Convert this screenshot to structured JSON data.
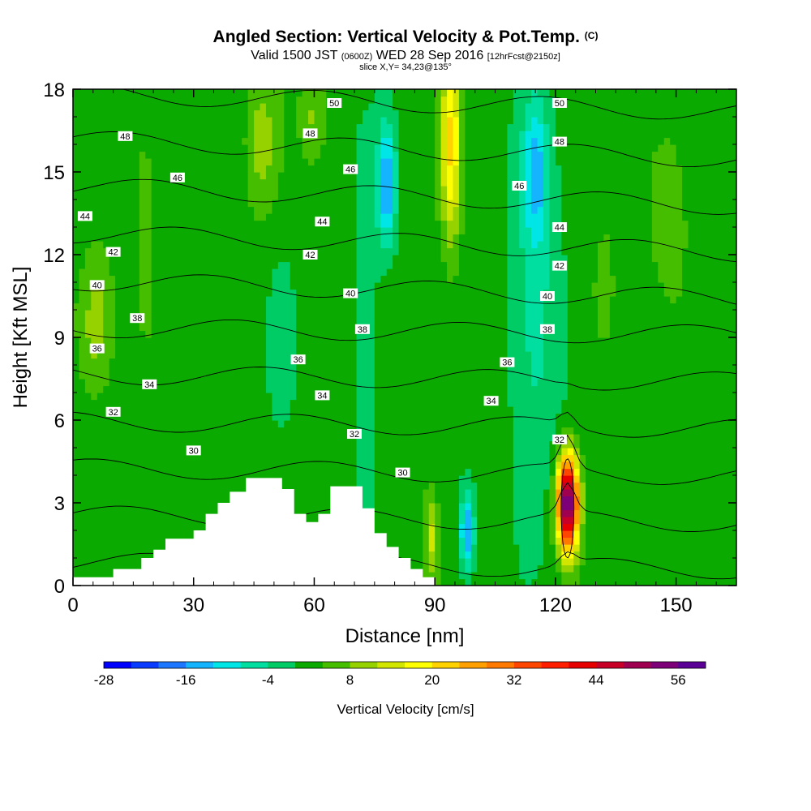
{
  "header": {
    "title_main": "Angled Section: Vertical Velocity & Pot.Temp.",
    "title_unit": "(C)",
    "valid_prefix": "Valid 1500 JST",
    "valid_z": "(0600Z)",
    "valid_date": "WED 28 Sep 2016",
    "valid_fcst": "[12hrFcst@2150z]",
    "slice": "slice X,Y= 34,23@135°"
  },
  "chart_data": {
    "type": "heatmap",
    "xlabel": "Distance [nm]",
    "ylabel": "Height [Kft MSL]",
    "xlim": [
      0,
      165
    ],
    "ylim": [
      0,
      18
    ],
    "x_ticks": [
      0,
      30,
      60,
      90,
      120,
      150
    ],
    "y_ticks": [
      0,
      3,
      6,
      9,
      12,
      15,
      18
    ],
    "colorbar": {
      "label": "Vertical Velocity [cm/s]",
      "min": -28,
      "max": 60,
      "step": 4,
      "tick_labels": [
        "-28",
        "-16",
        "-4",
        "8",
        "20",
        "32",
        "44",
        "56"
      ],
      "colors": [
        "#0000ff",
        "#0a3cff",
        "#1e78ff",
        "#14b4ff",
        "#00e6e6",
        "#00dfa0",
        "#00cc66",
        "#0aaa00",
        "#46be00",
        "#96d200",
        "#d2e600",
        "#ffff00",
        "#ffd200",
        "#ffa000",
        "#ff7800",
        "#ff4600",
        "#ff1e00",
        "#e60000",
        "#c80028",
        "#a00050",
        "#7d0078",
        "#5a0096"
      ]
    },
    "theta_contours": {
      "levels": [
        30,
        32,
        34,
        36,
        38,
        40,
        42,
        44,
        46,
        48,
        50
      ],
      "labels": [
        {
          "v": "50",
          "x": 65,
          "y": 17.5
        },
        {
          "v": "50",
          "x": 121,
          "y": 17.5
        },
        {
          "v": "48",
          "x": 13,
          "y": 16.3
        },
        {
          "v": "48",
          "x": 59,
          "y": 16.4
        },
        {
          "v": "48",
          "x": 121,
          "y": 16.1
        },
        {
          "v": "46",
          "x": 26,
          "y": 14.8
        },
        {
          "v": "46",
          "x": 69,
          "y": 15.1
        },
        {
          "v": "46",
          "x": 111,
          "y": 14.5
        },
        {
          "v": "44",
          "x": 3,
          "y": 13.4
        },
        {
          "v": "44",
          "x": 62,
          "y": 13.2
        },
        {
          "v": "44",
          "x": 121,
          "y": 13.0
        },
        {
          "v": "42",
          "x": 10,
          "y": 12.1
        },
        {
          "v": "42",
          "x": 59,
          "y": 12.0
        },
        {
          "v": "42",
          "x": 121,
          "y": 11.6
        },
        {
          "v": "40",
          "x": 6,
          "y": 10.9
        },
        {
          "v": "40",
          "x": 69,
          "y": 10.6
        },
        {
          "v": "40",
          "x": 118,
          "y": 10.5
        },
        {
          "v": "38",
          "x": 16,
          "y": 9.7
        },
        {
          "v": "38",
          "x": 72,
          "y": 9.3
        },
        {
          "v": "38",
          "x": 118,
          "y": 9.3
        },
        {
          "v": "36",
          "x": 6,
          "y": 8.6
        },
        {
          "v": "36",
          "x": 56,
          "y": 8.2
        },
        {
          "v": "36",
          "x": 108,
          "y": 8.1
        },
        {
          "v": "34",
          "x": 19,
          "y": 7.3
        },
        {
          "v": "34",
          "x": 62,
          "y": 6.9
        },
        {
          "v": "34",
          "x": 104,
          "y": 6.7
        },
        {
          "v": "32",
          "x": 10,
          "y": 6.3
        },
        {
          "v": "32",
          "x": 70,
          "y": 5.5
        },
        {
          "v": "32",
          "x": 121,
          "y": 5.3
        },
        {
          "v": "30",
          "x": 30,
          "y": 4.9
        },
        {
          "v": "30",
          "x": 82,
          "y": 4.1
        }
      ]
    },
    "features": [
      {
        "kind": "updraft",
        "x": 123,
        "y": 3.0,
        "peak_cm_s": 56
      },
      {
        "kind": "updraft",
        "x": 94,
        "y": 16.0,
        "peak_cm_s": 20
      },
      {
        "kind": "downdraft",
        "x": 78,
        "y": 14.5,
        "peak_cm_s": -16
      },
      {
        "kind": "downdraft",
        "x": 115,
        "y": 15.0,
        "peak_cm_s": -12
      },
      {
        "kind": "downdraft",
        "x": 98,
        "y": 2.0,
        "peak_cm_s": -16
      }
    ]
  }
}
